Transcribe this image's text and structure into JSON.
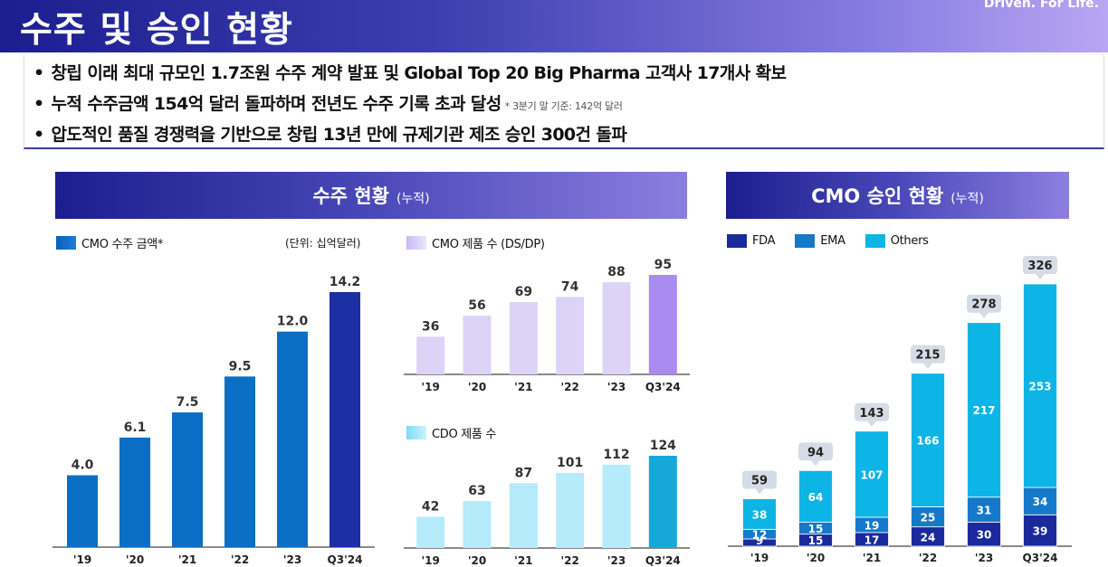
{
  "header": {
    "title": "수주 및 승인 현황",
    "tagline": "Driven. For Life."
  },
  "bullets": [
    {
      "text": "창립 이래 최대 규모인 1.7조원 수주 계약 발표 및 Global Top 20 Big Pharma 고객사 17개사 확보",
      "note": ""
    },
    {
      "text": "누적 수주금액 154억 달러 돌파하며 전년도 수주 기록 초과 달성",
      "note": "* 3분기 말 기준: 142억 달러"
    },
    {
      "text": "압도적인 품질 경쟁력을 기반으로 창립 13년 만에 규제기관 제조 승인 300건 돌파",
      "note": ""
    }
  ],
  "left_panel": {
    "title": "수주 현황",
    "subtitle": "(누적)"
  },
  "right_panel": {
    "title": "CMO 승인 현황",
    "subtitle": "(누적)"
  },
  "bullet_dot": "•",
  "colors": {
    "cmo_amount": "#0a6fc4",
    "cmo_amount_last": "#1c2fa3",
    "cmo_product": "#dcd3f7",
    "cmo_product_last": "#a98bf0",
    "cdo_product": "#b5ebfb",
    "cdo_product_last": "#16a9d8",
    "fda": "#1a2a9c",
    "ema": "#1479c9",
    "others": "#0db4e6"
  },
  "chart_data": [
    {
      "type": "bar",
      "legend": "CMO 수주 금액*",
      "unit_label": "(단위: 십억달러)",
      "categories": [
        "'19",
        "'20",
        "'21",
        "'22",
        "'23",
        "Q3'24"
      ],
      "values": [
        4.0,
        6.1,
        7.5,
        9.5,
        12.0,
        14.2
      ],
      "labels": [
        "4.0",
        "6.1",
        "7.5",
        "9.5",
        "12.0",
        "14.2"
      ],
      "ylim": [
        0,
        14.2
      ]
    },
    {
      "type": "bar",
      "legend": "CMO 제품 수 (DS/DP)",
      "categories": [
        "'19",
        "'20",
        "'21",
        "'22",
        "'23",
        "Q3'24"
      ],
      "values": [
        36,
        56,
        69,
        74,
        88,
        95
      ],
      "ylim": [
        0,
        95
      ]
    },
    {
      "type": "bar",
      "legend": "CDO 제품 수",
      "categories": [
        "'19",
        "'20",
        "'21",
        "'22",
        "'23",
        "Q3'24"
      ],
      "values": [
        42,
        63,
        87,
        101,
        112,
        124
      ],
      "ylim": [
        0,
        124
      ]
    },
    {
      "type": "bar",
      "stacked": true,
      "categories": [
        "'19",
        "'20",
        "'21",
        "'22",
        "'23",
        "Q3'24"
      ],
      "series": [
        {
          "name": "FDA",
          "values": [
            9,
            15,
            17,
            24,
            30,
            39
          ]
        },
        {
          "name": "EMA",
          "values": [
            12,
            15,
            19,
            25,
            31,
            34
          ]
        },
        {
          "name": "Others",
          "values": [
            38,
            64,
            107,
            166,
            217,
            253
          ]
        }
      ],
      "totals": [
        59,
        94,
        143,
        215,
        278,
        326
      ],
      "ylim": [
        0,
        326
      ]
    }
  ]
}
